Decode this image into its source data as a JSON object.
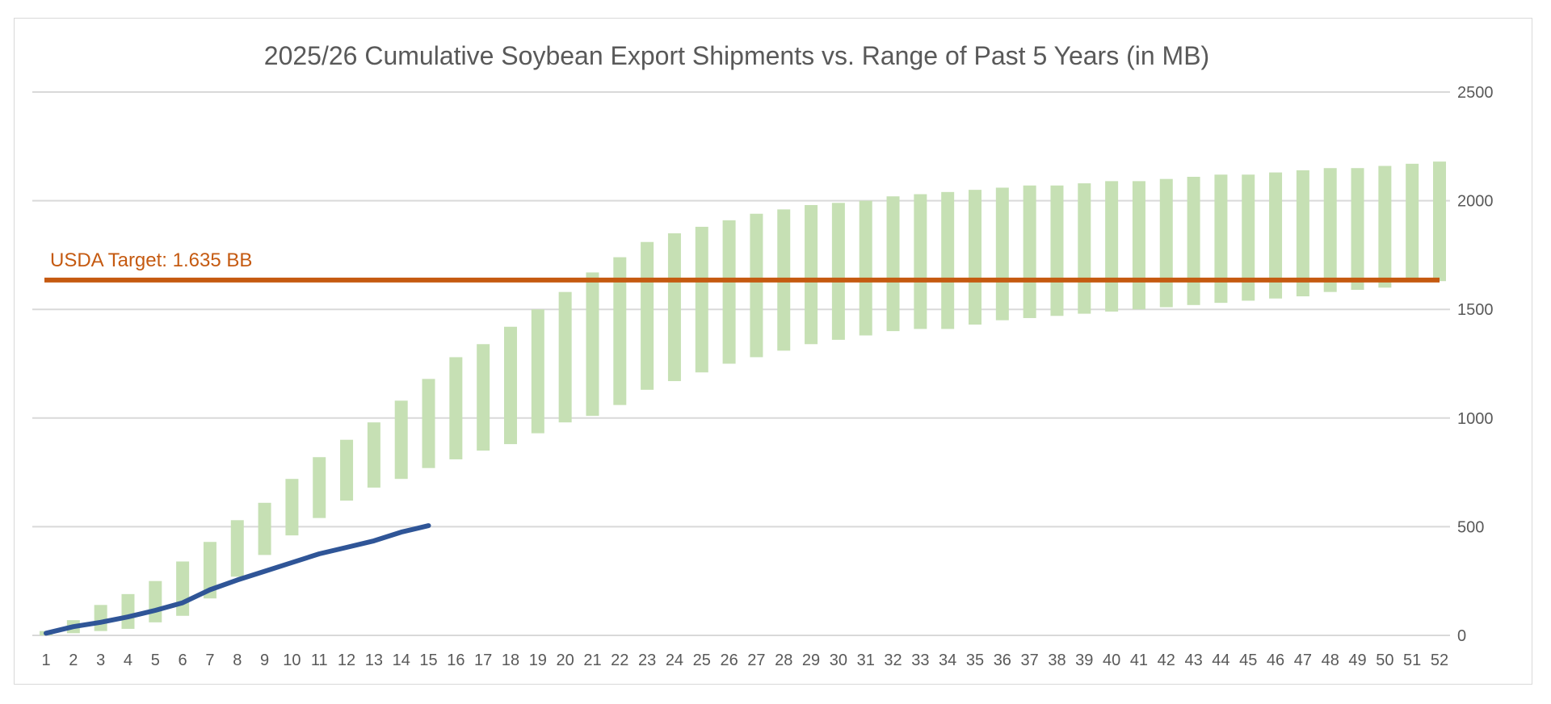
{
  "chart_data": {
    "type": "bar",
    "title": "2025/26 Cumulative Soybean Export Shipments vs. Range of Past 5 Years (in MB)",
    "xlabel": "",
    "ylabel": "",
    "ylim": [
      0,
      2500
    ],
    "yticks": [
      0,
      500,
      1000,
      1500,
      2000,
      2500
    ],
    "y_axis_side": "right",
    "grid": "horizontal",
    "legend": "none",
    "categories": [
      "1",
      "2",
      "3",
      "4",
      "5",
      "6",
      "7",
      "8",
      "9",
      "10",
      "11",
      "12",
      "13",
      "14",
      "15",
      "16",
      "17",
      "18",
      "19",
      "20",
      "21",
      "22",
      "23",
      "24",
      "25",
      "26",
      "27",
      "28",
      "29",
      "30",
      "31",
      "32",
      "33",
      "34",
      "35",
      "36",
      "37",
      "38",
      "39",
      "40",
      "41",
      "42",
      "43",
      "44",
      "45",
      "46",
      "47",
      "48",
      "49",
      "50",
      "51",
      "52"
    ],
    "series": [
      {
        "type": "floating-bar",
        "color": "#c6e0b4",
        "low": [
          0,
          10,
          20,
          30,
          60,
          90,
          170,
          270,
          370,
          460,
          540,
          620,
          680,
          720,
          770,
          810,
          850,
          880,
          930,
          980,
          1010,
          1060,
          1130,
          1170,
          1210,
          1250,
          1280,
          1310,
          1340,
          1360,
          1380,
          1400,
          1410,
          1410,
          1430,
          1450,
          1460,
          1470,
          1480,
          1490,
          1500,
          1510,
          1520,
          1530,
          1540,
          1550,
          1560,
          1580,
          1590,
          1600,
          1630,
          1630
        ],
        "high": [
          20,
          70,
          140,
          190,
          250,
          340,
          430,
          530,
          610,
          720,
          820,
          900,
          980,
          1080,
          1180,
          1280,
          1340,
          1420,
          1500,
          1580,
          1670,
          1740,
          1810,
          1850,
          1880,
          1910,
          1940,
          1960,
          1980,
          1990,
          2000,
          2020,
          2030,
          2040,
          2050,
          2060,
          2070,
          2070,
          2080,
          2090,
          2090,
          2100,
          2110,
          2120,
          2120,
          2130,
          2140,
          2150,
          2150,
          2160,
          2170,
          2180
        ]
      },
      {
        "type": "line",
        "color": "#2f5597",
        "x": [
          1,
          2,
          3,
          4,
          5,
          6,
          7,
          8,
          9,
          10,
          11,
          12,
          13,
          14,
          15
        ],
        "values": [
          10,
          40,
          60,
          85,
          115,
          150,
          210,
          255,
          295,
          335,
          375,
          405,
          435,
          475,
          505
        ]
      }
    ],
    "reference_line": {
      "value": 1635,
      "label": "USDA Target: 1.635 BB",
      "color": "#c55a11"
    }
  }
}
